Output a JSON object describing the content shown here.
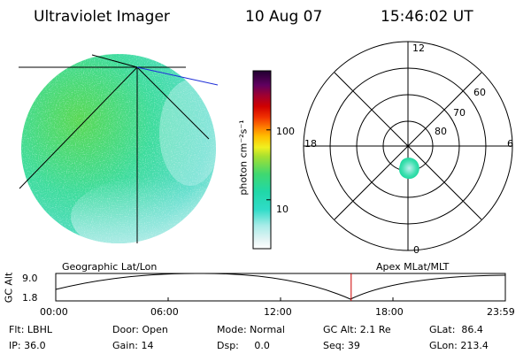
{
  "header": {
    "title": "Ultraviolet Imager",
    "date": "10 Aug 07",
    "time": "15:46:02 UT"
  },
  "colorbar": {
    "unit_label": "photon cm⁻²s⁻¹",
    "scale": "log",
    "tick_labels": [
      "100",
      "10"
    ],
    "tick_values": [
      100,
      10
    ],
    "range": [
      2,
      700
    ]
  },
  "polar_plot": {
    "mlt_labels": {
      "top": "12",
      "left": "18",
      "right": "6",
      "bottom": "0"
    },
    "lat_labels": [
      "60",
      "70",
      "80"
    ],
    "lat_values": [
      60,
      70,
      80
    ]
  },
  "timeline": {
    "y_label": "GC Alt",
    "y_ticks": [
      "9.0",
      "1.8"
    ],
    "y_range": [
      1.8,
      9.0
    ],
    "left_label": "Geographic Lat/Lon",
    "right_label": "Apex MLat/MLT",
    "x_ticks": [
      "00:00",
      "06:00",
      "12:00",
      "18:00",
      "23:59"
    ],
    "current_time_hours": 15.77,
    "cursor_color": "#cc0000"
  },
  "footer": {
    "flt": "Flt: LBHL",
    "ip": "IP: 36.0",
    "door": "Door: Open",
    "gain": "Gain: 14",
    "mode": "Mode: Normal",
    "dsp": "Dsp:     0.0",
    "gcalt": "GC Alt: 2.1 Re",
    "seq": "Seq: 39",
    "glat": "GLat:  86.4",
    "glon": "GLon: 213.4"
  },
  "colors": {
    "disk_main": "#3ddc9c",
    "disk_green": "#59d852",
    "disk_pale": "#bff0ee",
    "ovation": "#3fe0b0",
    "geo_line_blue": "#2030d8"
  }
}
